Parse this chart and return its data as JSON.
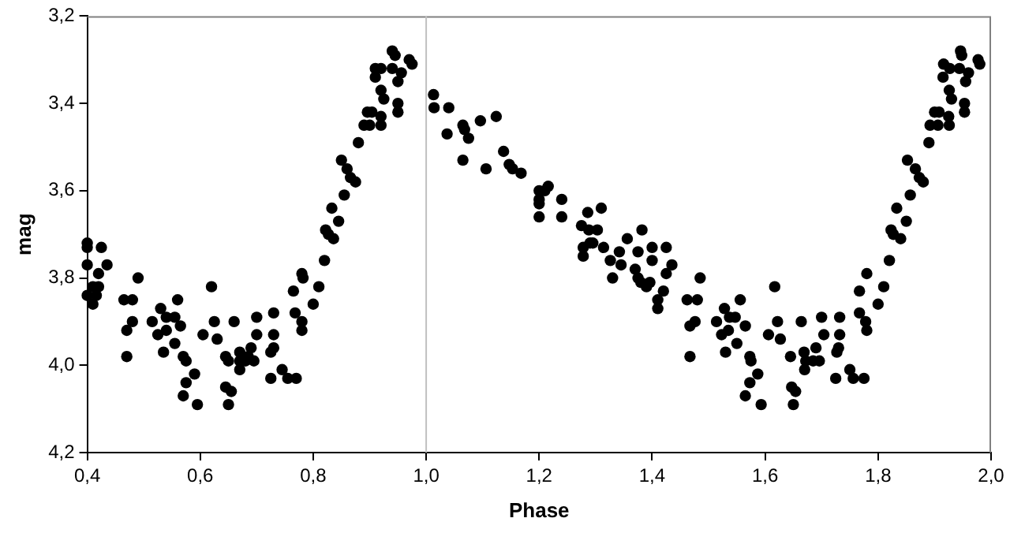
{
  "chart_data": {
    "type": "scatter",
    "xlabel": "Phase",
    "ylabel": "mag",
    "marker": "circle",
    "grid": false,
    "legend": false,
    "xlim": [
      0.4,
      2.0
    ],
    "ylim": [
      4.2,
      3.2
    ],
    "xticks": [
      {
        "value": 0.4,
        "label": "0,4"
      },
      {
        "value": 0.6,
        "label": "0,6"
      },
      {
        "value": 0.8,
        "label": "0,8"
      },
      {
        "value": 1.0,
        "label": "1,0"
      },
      {
        "value": 1.2,
        "label": "1,2"
      },
      {
        "value": 1.4,
        "label": "1,4"
      },
      {
        "value": 1.6,
        "label": "1,6"
      },
      {
        "value": 1.8,
        "label": "1,8"
      },
      {
        "value": 2.0,
        "label": "2,0"
      }
    ],
    "yticks": [
      {
        "value": 3.2,
        "label": "3,2"
      },
      {
        "value": 3.4,
        "label": "3,4"
      },
      {
        "value": 3.6,
        "label": "3,6"
      },
      {
        "value": 3.8,
        "label": "3,8"
      },
      {
        "value": 4.0,
        "label": "4,0"
      },
      {
        "value": 4.2,
        "label": "4,2"
      }
    ],
    "ref_lines": [
      {
        "axis": "x",
        "value": 1.0,
        "color": "#c0c0c0"
      }
    ],
    "series": [
      {
        "color": "#000000",
        "x": [
          0.4,
          0.4,
          0.4,
          0.4,
          0.41,
          0.416,
          0.41,
          0.42,
          0.425,
          0.42,
          0.435,
          0.465,
          0.47,
          0.47,
          0.48,
          0.48,
          0.49,
          0.515,
          0.525,
          0.53,
          0.535,
          0.54,
          0.54,
          0.555,
          0.555,
          0.56,
          0.565,
          0.57,
          0.57,
          0.575,
          0.575,
          0.59,
          0.595,
          0.605,
          0.62,
          0.625,
          0.63,
          0.645,
          0.645,
          0.65,
          0.65,
          0.655,
          0.66,
          0.67,
          0.67,
          0.67,
          0.68,
          0.685,
          0.695,
          0.69,
          0.7,
          0.7,
          0.725,
          0.725,
          0.73,
          0.73,
          0.73,
          0.745,
          0.755,
          0.77,
          0.765,
          0.768,
          0.78,
          0.78,
          0.78,
          0.782,
          0.8,
          0.81,
          0.82,
          0.822,
          0.827,
          0.833,
          0.836,
          0.845,
          0.85,
          0.855,
          0.86,
          0.866,
          0.875,
          0.88,
          0.89,
          0.896,
          0.904,
          0.9,
          0.92,
          0.92,
          0.92,
          0.925,
          0.91,
          0.91,
          0.92,
          0.94,
          0.945,
          0.94,
          0.95,
          0.95,
          0.95,
          0.956,
          0.97,
          0.975,
          1.013,
          1.014,
          1.04,
          1.037,
          1.065,
          1.068,
          1.065,
          1.075,
          1.096,
          1.106,
          1.124,
          1.137,
          1.147,
          1.153,
          1.168,
          1.2,
          1.2,
          1.2,
          1.2,
          1.21,
          1.216,
          1.24,
          1.24,
          1.275,
          1.278,
          1.278,
          1.286,
          1.288,
          1.29,
          1.295,
          1.303,
          1.31,
          1.314,
          1.326,
          1.33,
          1.342,
          1.345,
          1.356,
          1.375,
          1.382,
          1.37,
          1.375,
          1.38,
          1.39,
          1.4,
          1.4,
          1.41,
          1.41,
          1.425,
          1.435,
          1.425,
          1.42,
          1.396,
          1.462,
          1.467,
          1.467,
          1.48,
          1.476,
          1.485,
          1.514,
          1.523,
          1.528,
          1.53,
          1.537,
          1.535,
          1.547,
          1.55,
          1.556,
          1.565,
          1.565,
          1.573,
          1.575,
          1.573,
          1.587,
          1.593,
          1.606,
          1.617,
          1.622,
          1.627,
          1.645,
          1.647,
          1.65,
          1.654,
          1.664,
          1.669,
          1.67,
          1.672,
          1.685,
          1.69,
          1.696,
          1.7,
          1.704,
          1.725,
          1.727,
          1.732,
          1.732,
          1.73,
          1.75,
          1.756,
          1.775,
          1.767,
          1.767,
          1.78,
          1.778,
          1.78,
          1.8,
          1.81,
          1.82,
          1.823,
          1.827,
          1.833,
          1.84,
          1.85,
          1.852,
          1.857,
          1.866,
          1.873,
          1.88,
          1.89,
          1.892,
          1.9,
          1.908,
          1.906,
          1.926,
          1.925,
          1.926,
          1.93,
          1.915,
          1.916,
          1.927,
          1.946,
          1.948,
          1.944,
          1.953,
          1.953,
          1.955,
          1.96,
          1.977,
          1.98
        ],
        "values": [
          3.84,
          3.72,
          3.73,
          3.77,
          3.82,
          3.84,
          3.86,
          3.82,
          3.73,
          3.79,
          3.77,
          3.85,
          3.92,
          3.98,
          3.9,
          3.85,
          3.8,
          3.9,
          3.93,
          3.87,
          3.97,
          3.89,
          3.92,
          3.89,
          3.95,
          3.85,
          3.91,
          4.07,
          3.98,
          3.99,
          4.04,
          4.02,
          4.09,
          3.93,
          3.82,
          3.9,
          3.94,
          3.98,
          4.05,
          3.99,
          4.09,
          4.06,
          3.9,
          3.97,
          4.01,
          3.99,
          3.99,
          3.98,
          3.99,
          3.96,
          3.89,
          3.93,
          4.03,
          3.97,
          3.88,
          3.93,
          3.96,
          4.01,
          4.03,
          4.03,
          3.83,
          3.88,
          3.79,
          3.9,
          3.92,
          3.8,
          3.86,
          3.82,
          3.76,
          3.69,
          3.7,
          3.64,
          3.71,
          3.67,
          3.53,
          3.61,
          3.55,
          3.57,
          3.58,
          3.49,
          3.45,
          3.42,
          3.42,
          3.45,
          3.45,
          3.43,
          3.37,
          3.39,
          3.34,
          3.32,
          3.32,
          3.28,
          3.29,
          3.32,
          3.4,
          3.42,
          3.35,
          3.33,
          3.3,
          3.31,
          3.38,
          3.41,
          3.41,
          3.47,
          3.45,
          3.46,
          3.53,
          3.48,
          3.44,
          3.55,
          3.43,
          3.51,
          3.54,
          3.55,
          3.56,
          3.6,
          3.62,
          3.63,
          3.66,
          3.6,
          3.59,
          3.62,
          3.66,
          3.68,
          3.73,
          3.75,
          3.65,
          3.69,
          3.72,
          3.72,
          3.69,
          3.64,
          3.73,
          3.76,
          3.8,
          3.74,
          3.77,
          3.71,
          3.74,
          3.69,
          3.78,
          3.8,
          3.81,
          3.82,
          3.76,
          3.73,
          3.85,
          3.87,
          3.73,
          3.77,
          3.79,
          3.83,
          3.81,
          3.85,
          3.91,
          3.98,
          3.85,
          3.9,
          3.8,
          3.9,
          3.93,
          3.87,
          3.97,
          3.89,
          3.92,
          3.89,
          3.95,
          3.85,
          3.91,
          4.07,
          3.98,
          3.99,
          4.04,
          4.02,
          4.09,
          3.93,
          3.82,
          3.9,
          3.94,
          3.98,
          4.05,
          4.09,
          4.06,
          3.9,
          3.97,
          4.01,
          3.99,
          3.99,
          3.96,
          3.99,
          3.89,
          3.93,
          4.03,
          3.97,
          3.89,
          3.93,
          3.96,
          4.01,
          4.03,
          4.03,
          3.83,
          3.88,
          3.79,
          3.9,
          3.92,
          3.86,
          3.82,
          3.76,
          3.69,
          3.7,
          3.64,
          3.71,
          3.67,
          3.53,
          3.61,
          3.55,
          3.57,
          3.58,
          3.49,
          3.45,
          3.42,
          3.42,
          3.45,
          3.45,
          3.43,
          3.37,
          3.39,
          3.34,
          3.31,
          3.32,
          3.28,
          3.29,
          3.32,
          3.4,
          3.42,
          3.35,
          3.33,
          3.3,
          3.31
        ]
      }
    ]
  }
}
